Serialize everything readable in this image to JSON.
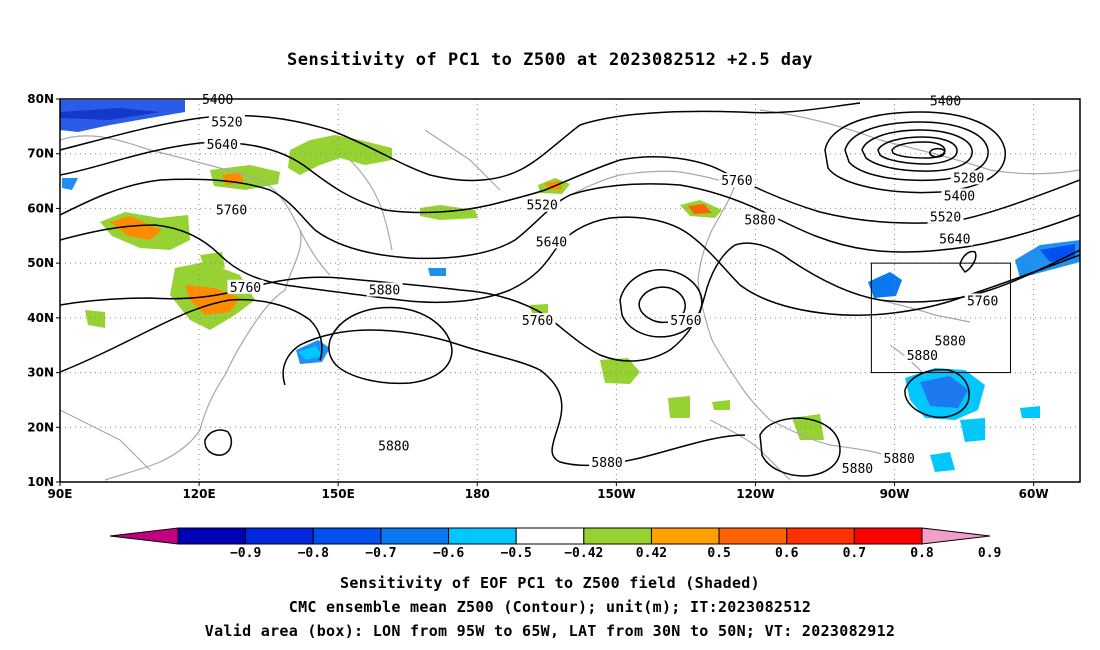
{
  "title": "Sensitivity of PC1 to Z500 at 2023082512 +2.5 day",
  "map": {
    "lon_range": [
      90,
      310
    ],
    "lat_range": [
      10,
      80
    ],
    "lon_ticks": [
      {
        "lon": 90,
        "label": "90E"
      },
      {
        "lon": 120,
        "label": "120E"
      },
      {
        "lon": 150,
        "label": "150E"
      },
      {
        "lon": 180,
        "label": "180"
      },
      {
        "lon": 210,
        "label": "150W"
      },
      {
        "lon": 240,
        "label": "120W"
      },
      {
        "lon": 270,
        "label": "90W"
      },
      {
        "lon": 300,
        "label": "60W"
      }
    ],
    "lat_ticks": [
      {
        "lat": 80,
        "label": "80N"
      },
      {
        "lat": 70,
        "label": "70N"
      },
      {
        "lat": 60,
        "label": "60N"
      },
      {
        "lat": 50,
        "label": "50N"
      },
      {
        "lat": 40,
        "label": "40N"
      },
      {
        "lat": 30,
        "label": "30N"
      },
      {
        "lat": 20,
        "label": "20N"
      },
      {
        "lat": 10,
        "label": "10N"
      }
    ],
    "valid_box": {
      "lon_min": 265,
      "lon_max": 295,
      "lat_min": 30,
      "lat_max": 50
    },
    "contour_labels": [
      {
        "text": "5400",
        "lon": 124,
        "lat": 79.8
      },
      {
        "text": "5520",
        "lon": 126,
        "lat": 75.7
      },
      {
        "text": "5640",
        "lon": 125,
        "lat": 71.6
      },
      {
        "text": "5760",
        "lon": 127,
        "lat": 59.6
      },
      {
        "text": "5760",
        "lon": 130,
        "lat": 45.5
      },
      {
        "text": "5880",
        "lon": 160,
        "lat": 45.0
      },
      {
        "text": "5880",
        "lon": 162,
        "lat": 16.5
      },
      {
        "text": "5520",
        "lon": 194,
        "lat": 60.5
      },
      {
        "text": "5640",
        "lon": 196,
        "lat": 53.8
      },
      {
        "text": "5760",
        "lon": 193,
        "lat": 39.4
      },
      {
        "text": "5760",
        "lon": 225,
        "lat": 39.4
      },
      {
        "text": "5760",
        "lon": 236,
        "lat": 65.0
      },
      {
        "text": "5880",
        "lon": 241,
        "lat": 57.8
      },
      {
        "text": "5880",
        "lon": 208,
        "lat": 13.5
      },
      {
        "text": "5880",
        "lon": 262,
        "lat": 12.4
      },
      {
        "text": "5880",
        "lon": 271,
        "lat": 14.2
      },
      {
        "text": "5880",
        "lon": 276,
        "lat": 33.0
      },
      {
        "text": "5880",
        "lon": 282,
        "lat": 35.7
      },
      {
        "text": "5760",
        "lon": 289,
        "lat": 43.0
      },
      {
        "text": "5400",
        "lon": 281,
        "lat": 79.5
      },
      {
        "text": "5280",
        "lon": 286,
        "lat": 65.5
      },
      {
        "text": "5400",
        "lon": 284,
        "lat": 62.2
      },
      {
        "text": "5520",
        "lon": 281,
        "lat": 58.3
      },
      {
        "text": "5640",
        "lon": 283,
        "lat": 54.3
      }
    ]
  },
  "colorbar": {
    "labels": [
      "−0.9",
      "−0.8",
      "−0.7",
      "−0.6",
      "−0.5",
      "−0.42",
      "0.42",
      "0.5",
      "0.6",
      "0.7",
      "0.8",
      "0.9"
    ],
    "colors": [
      "#c0007f",
      "#0000b4",
      "#0028dc",
      "#0050f0",
      "#0a78f0",
      "#00c8ff",
      "#ffffff",
      "#96d232",
      "#ffa000",
      "#ff6400",
      "#ff3200",
      "#ff0000",
      "#f0a0c8"
    ]
  },
  "captions": [
    "Sensitivity of EOF PC1 to Z500 field (Shaded)",
    "CMC ensemble mean Z500 (Contour); unit(m); IT:2023082512",
    "Valid area (box): LON from 95W to 65W, LAT from 30N to 50N; VT: 2023082912"
  ]
}
